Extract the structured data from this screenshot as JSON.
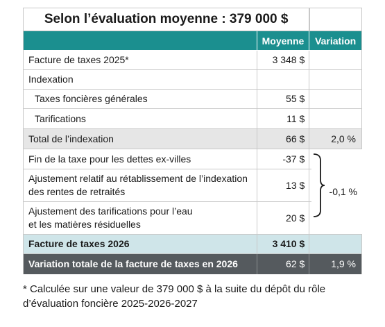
{
  "title": "Selon l’évaluation moyenne : 379 000 $",
  "headers": {
    "moyenne": "Moyenne",
    "variation": "Variation"
  },
  "rows": [
    {
      "label": "Facture de taxes 2025*",
      "value": "3 348 $",
      "variation": ""
    },
    {
      "label": "Indexation",
      "value": "",
      "variation": ""
    },
    {
      "label": "Taxes foncières générales",
      "value": "55 $",
      "variation": ""
    },
    {
      "label": "Tarifications",
      "value": "11 $",
      "variation": ""
    },
    {
      "label": "Total de l’indexation",
      "value": "66 $",
      "variation": "2,0 %"
    },
    {
      "label": "Fin de la taxe pour les dettes ex-villes",
      "value": "-37 $"
    },
    {
      "label_line1": "Ajustement relatif au rétablissement de l’indexation",
      "label_line2": "des rentes de retraités",
      "value": "13 $"
    },
    {
      "label_line1": "Ajustement des tarifications pour l’eau",
      "label_line2": "et les matières résiduelles",
      "value": "20 $"
    },
    {
      "label": "Facture de taxes 2026",
      "value": "3 410 $",
      "variation": ""
    },
    {
      "label": "Variation totale de la facture de taxes en 2026",
      "value": "62 $",
      "variation": "1,9 %"
    }
  ],
  "group_variation": "-0,1 %",
  "footnote_line1": "* Calculée sur une valeur de 379 000 $ à la suite du dépôt du rôle",
  "footnote_line2": "d’évaluation foncière 2025-2026-2027",
  "colors": {
    "header_bg": "#1b8f8f",
    "total_bg": "#e6e6e6",
    "facture_bg": "#cfe5e9",
    "final_bg": "#555a5e"
  }
}
